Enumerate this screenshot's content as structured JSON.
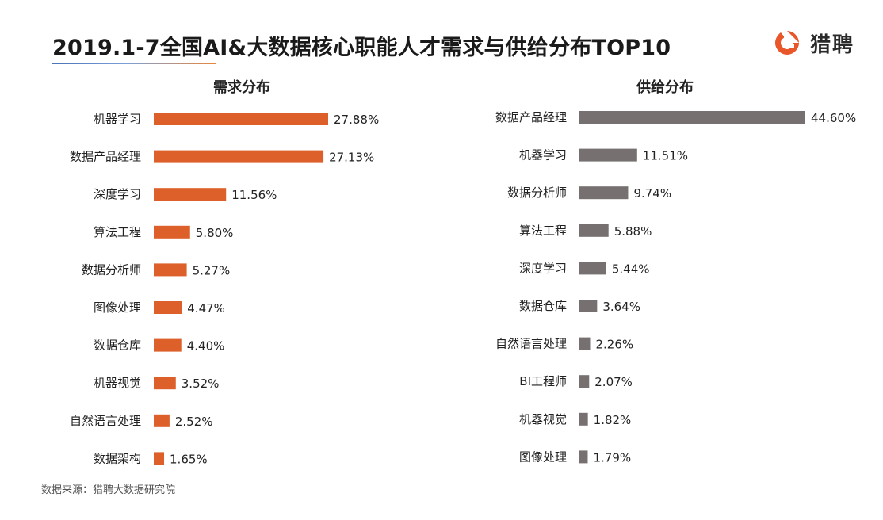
{
  "header": {
    "title": "2019.1-7全国AI&大数据核心职能人才需求与供给分布TOP10",
    "logo_icon": "liepin-logo-icon",
    "logo_text": "猎聘",
    "accent_color": "#e8562a"
  },
  "footer": {
    "source": "数据来源：猎聘大数据研究院"
  },
  "chart_data": [
    {
      "type": "bar",
      "orientation": "horizontal",
      "title": "需求分布",
      "color": "#dd5f29",
      "categories": [
        "机器学习",
        "数据产品经理",
        "深度学习",
        "算法工程",
        "数据分析师",
        "图像处理",
        "数据仓库",
        "机器视觉",
        "自然语言处理",
        "数据架构"
      ],
      "values": [
        27.88,
        27.13,
        11.56,
        5.8,
        5.27,
        4.47,
        4.4,
        3.52,
        2.52,
        1.65
      ],
      "value_labels": [
        "27.88%",
        "27.13%",
        "11.56%",
        "5.80%",
        "5.27%",
        "4.47%",
        "4.40%",
        "3.52%",
        "2.52%",
        "1.65%"
      ],
      "xlim": [
        0,
        30
      ],
      "grid": false
    },
    {
      "type": "bar",
      "orientation": "horizontal",
      "title": "供给分布",
      "color": "#767070",
      "categories": [
        "数据产品经理",
        "机器学习",
        "数据分析师",
        "算法工程",
        "深度学习",
        "数据仓库",
        "自然语言处理",
        "BI工程师",
        "机器视觉",
        "图像处理"
      ],
      "values": [
        44.6,
        11.51,
        9.74,
        5.88,
        5.44,
        3.64,
        2.26,
        2.07,
        1.82,
        1.79
      ],
      "value_labels": [
        "44.60%",
        "11.51%",
        "9.74%",
        "5.88%",
        "5.44%",
        "3.64%",
        "2.26%",
        "2.07%",
        "1.82%",
        "1.79%"
      ],
      "xlim": [
        0,
        45
      ],
      "grid": false
    }
  ]
}
